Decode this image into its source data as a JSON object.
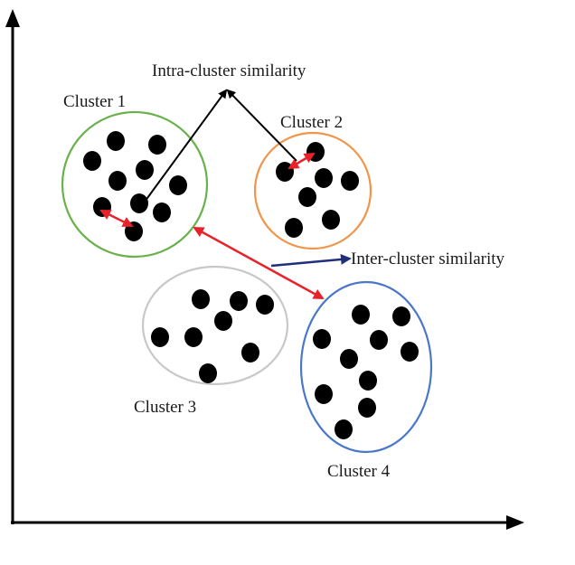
{
  "labels": {
    "intra_cluster": "Intra-cluster similarity",
    "inter_cluster": "Inter-cluster similarity"
  },
  "clusters": [
    {
      "name": "Cluster 1",
      "ring_color": "#6ab04c"
    },
    {
      "name": "Cluster 2",
      "ring_color": "#f0954a"
    },
    {
      "name": "Cluster 3",
      "ring_color": "#c8c8c8"
    },
    {
      "name": "Cluster 4",
      "ring_color": "#4a78c8"
    }
  ],
  "colors": {
    "axis": "#000000",
    "point": "#000000",
    "intra_arrow": "#000000",
    "distance_arrow": "#e8222a",
    "inter_label_arrow": "#1f2f7a"
  }
}
